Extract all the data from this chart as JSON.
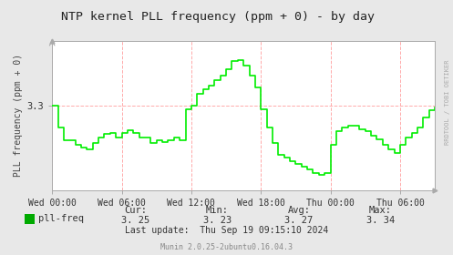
{
  "title": "NTP kernel PLL frequency (ppm + 0) - by day",
  "ylabel": "PLL frequency (ppm + 0)",
  "bg_color": "#e8e8e8",
  "plot_bg_color": "#ffffff",
  "line_color": "#00ee00",
  "grid_color_h": "#cc9999",
  "grid_color_v": "#ddaaaa",
  "right_label": "RRDTOOL / TOBI OETIKER",
  "footer": "Munin 2.0.25-2ubuntu0.16.04.3",
  "legend_label": "pll-freq",
  "legend_color": "#00aa00",
  "last_update": "Last update:  Thu Sep 19 09:15:10 2024",
  "xtick_labels": [
    "Wed 00:00",
    "Wed 06:00",
    "Wed 12:00",
    "Wed 18:00",
    "Thu 00:00",
    "Thu 06:00"
  ],
  "xtick_positions": [
    0,
    6,
    12,
    18,
    24,
    30
  ],
  "ytick_labels": [
    "3.3"
  ],
  "ytick_positions": [
    3.3
  ],
  "ylim": [
    3.215,
    3.365
  ],
  "xlim": [
    0,
    33
  ],
  "yval_3_3": 3.3,
  "time_points": [
    0,
    0.5,
    1.0,
    1.5,
    2.0,
    2.5,
    3.0,
    3.5,
    4.0,
    4.5,
    5.0,
    5.5,
    6.0,
    6.5,
    7.0,
    7.5,
    8.0,
    8.5,
    9.0,
    9.5,
    10.0,
    10.5,
    11.0,
    11.5,
    12.0,
    12.5,
    13.0,
    13.5,
    14.0,
    14.5,
    15.0,
    15.5,
    16.0,
    16.5,
    17.0,
    17.5,
    18.0,
    18.5,
    19.0,
    19.5,
    20.0,
    20.5,
    21.0,
    21.5,
    22.0,
    22.5,
    23.0,
    23.5,
    24.0,
    24.5,
    25.0,
    25.5,
    26.0,
    26.5,
    27.0,
    27.5,
    28.0,
    28.5,
    29.0,
    29.5,
    30.0,
    30.5,
    31.0,
    31.5,
    32.0,
    32.5,
    33.0
  ],
  "values": [
    3.3,
    3.278,
    3.265,
    3.265,
    3.26,
    3.258,
    3.256,
    3.262,
    3.268,
    3.271,
    3.272,
    3.268,
    3.272,
    3.275,
    3.272,
    3.268,
    3.268,
    3.262,
    3.265,
    3.263,
    3.265,
    3.268,
    3.265,
    3.296,
    3.3,
    3.312,
    3.316,
    3.32,
    3.325,
    3.33,
    3.336,
    3.345,
    3.346,
    3.34,
    3.33,
    3.318,
    3.296,
    3.278,
    3.262,
    3.25,
    3.248,
    3.244,
    3.241,
    3.238,
    3.236,
    3.232,
    3.23,
    3.232,
    3.26,
    3.274,
    3.278,
    3.28,
    3.28,
    3.276,
    3.274,
    3.27,
    3.266,
    3.26,
    3.256,
    3.252,
    3.26,
    3.268,
    3.272,
    3.278,
    3.288,
    3.295,
    3.298
  ]
}
